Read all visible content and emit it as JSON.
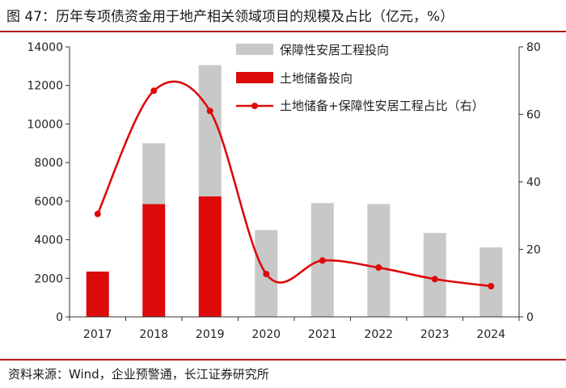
{
  "title": "图 47：历年专项债资金用于地产相关领域项目的规模及占比（亿元，%）",
  "source": "资料来源：Wind，企业预警通，长江证券研究所",
  "colors": {
    "rule": "#b01c1c",
    "grey_bar": "#c8c8c8",
    "red_bar": "#dd0a0a",
    "line": "#dd0a0a"
  },
  "chart_data": {
    "type": "bar",
    "categories": [
      "2017",
      "2018",
      "2019",
      "2020",
      "2021",
      "2022",
      "2023",
      "2024"
    ],
    "series": [
      {
        "name": "保障性安居工程投向",
        "type": "bar",
        "axis": "left",
        "values": [
          0,
          3150,
          6800,
          4500,
          5900,
          5850,
          4350,
          3600
        ]
      },
      {
        "name": "土地储备投向",
        "type": "bar",
        "axis": "left",
        "values": [
          2350,
          5850,
          6250,
          0,
          0,
          0,
          0,
          0
        ]
      },
      {
        "name": "土地储备+保障性安居工程占比（右）",
        "type": "line",
        "axis": "right",
        "values": [
          30.5,
          67,
          61,
          12.7,
          16.7,
          14.6,
          11.2,
          9.1
        ]
      }
    ],
    "y_left": {
      "range": [
        0,
        14000
      ],
      "ticks": [
        "0",
        "2000",
        "4000",
        "6000",
        "8000",
        "10000",
        "12000",
        "14000"
      ]
    },
    "y_right": {
      "range": [
        0,
        80
      ],
      "ticks": [
        "0",
        "20",
        "40",
        "60",
        "80"
      ]
    },
    "stacked": true,
    "legend_position": "top-right",
    "grid": false
  }
}
